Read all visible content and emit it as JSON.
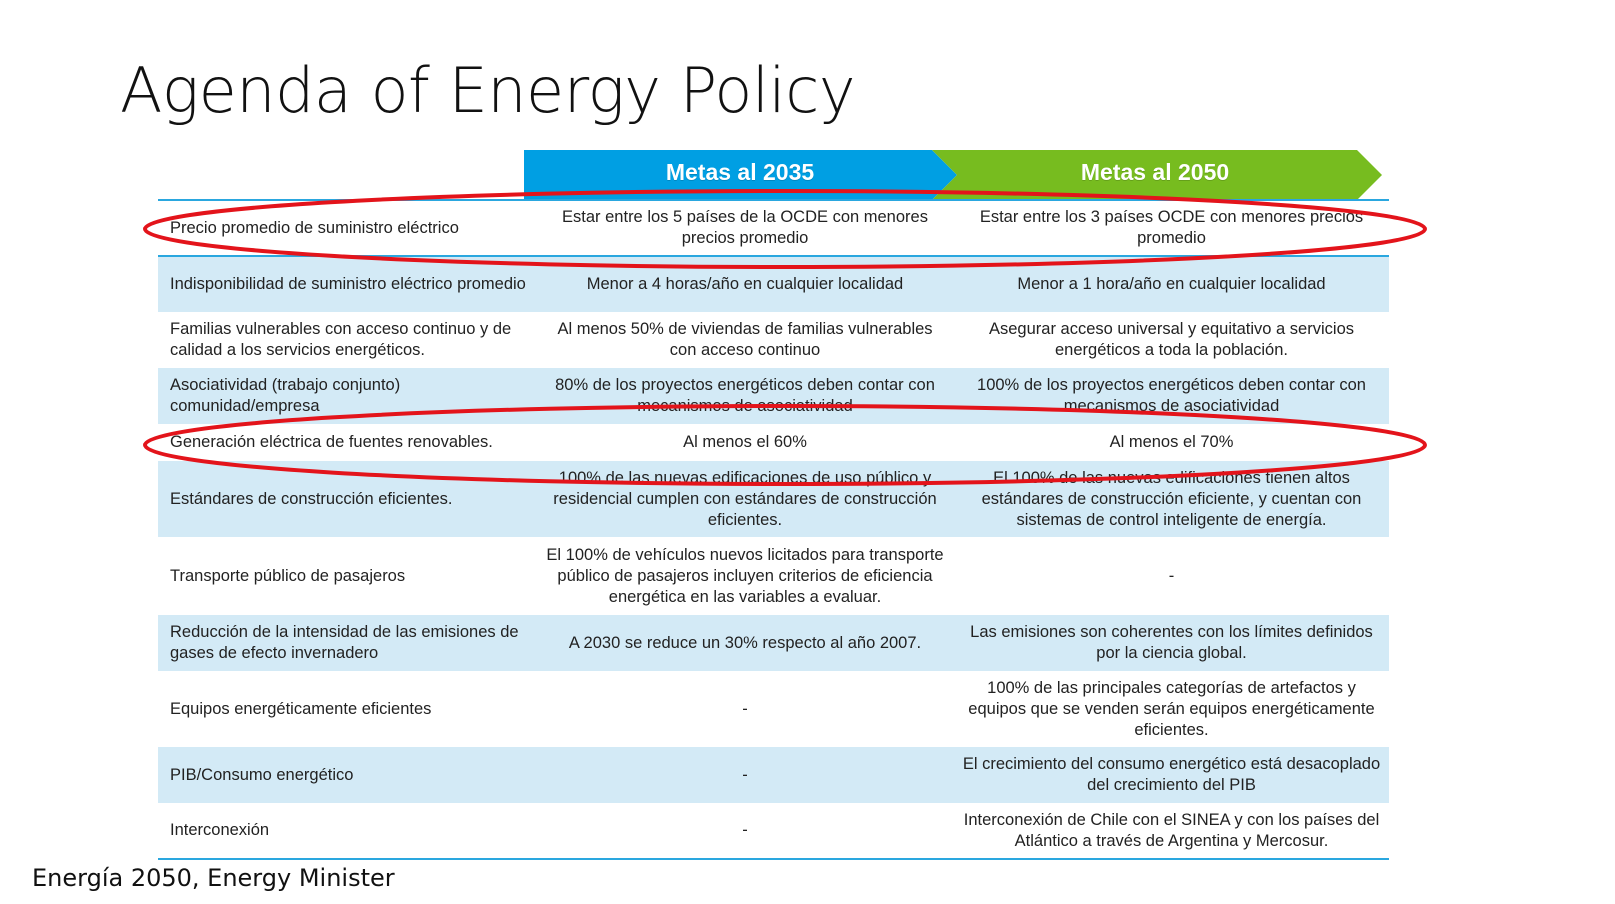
{
  "title": "Agenda of Energy Policy",
  "caption": "Energía 2050, Energy Minister",
  "colors": {
    "header_2035": "#009fe3",
    "header_2050": "#77bc1f",
    "row_alt": "#d3eaf6",
    "rule": "#2aa7df",
    "highlight_oval": "#e3141b"
  },
  "table": {
    "headers": {
      "goal_2035": "Metas al 2035",
      "goal_2050": "Metas al 2050"
    },
    "rows": [
      {
        "topic": "Precio promedio de suministro eléctrico",
        "goal_2035": "Estar entre los 5 países de la OCDE con menores precios promedio",
        "goal_2050": "Estar entre los 3 países OCDE con menores precios promedio"
      },
      {
        "topic": "Indisponibilidad de suministro eléctrico promedio",
        "goal_2035": "Menor a 4 horas/año en cualquier localidad",
        "goal_2050": "Menor a 1 hora/año en cualquier localidad"
      },
      {
        "topic": "Familias vulnerables con acceso continuo y de calidad a los servicios energéticos.",
        "goal_2035": "Al menos 50% de viviendas de familias vulnerables con acceso continuo",
        "goal_2050": "Asegurar acceso universal y equitativo a servicios energéticos a toda la población."
      },
      {
        "topic": "Asociatividad (trabajo conjunto) comunidad/empresa",
        "goal_2035": "80% de los proyectos energéticos deben contar con mecanismos de asociatividad",
        "goal_2050": "100% de los proyectos energéticos deben contar con mecanismos de asociatividad"
      },
      {
        "topic": "Generación eléctrica de fuentes renovables.",
        "goal_2035": "Al menos el 60%",
        "goal_2050": "Al menos el 70%"
      },
      {
        "topic": "Estándares de construcción eficientes.",
        "goal_2035": "100% de las nuevas edificaciones de uso público y residencial cumplen con estándares de construcción eficientes.",
        "goal_2050": "El 100% de las nuevas edificaciones tienen altos estándares de construcción eficiente, y cuentan con sistemas de control inteligente de energía."
      },
      {
        "topic": "Transporte público de pasajeros",
        "goal_2035": "El 100% de vehículos nuevos licitados para transporte público de pasajeros incluyen criterios de eficiencia energética en las variables a evaluar.",
        "goal_2050": "-"
      },
      {
        "topic": "Reducción de la intensidad de las emisiones de gases de efecto invernadero",
        "goal_2035": "A 2030 se reduce un 30% respecto al año 2007.",
        "goal_2050": "Las emisiones son coherentes con los límites definidos por la ciencia global."
      },
      {
        "topic": "Equipos energéticamente eficientes",
        "goal_2035": "-",
        "goal_2050": "100% de las principales categorías de artefactos y equipos que se venden serán equipos energéticamente eficientes."
      },
      {
        "topic": "PIB/Consumo energético",
        "goal_2035": "-",
        "goal_2050": "El crecimiento del consumo energético está desacoplado del crecimiento del PIB"
      },
      {
        "topic": "Interconexión",
        "goal_2035": "-",
        "goal_2050": "Interconexión de Chile con el SINEA y con los países del Atlántico a través de Argentina y Mercosur."
      }
    ]
  }
}
